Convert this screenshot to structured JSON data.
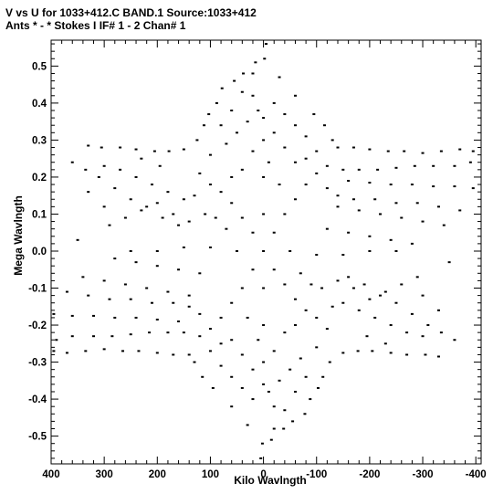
{
  "chart_data": {
    "type": "scatter",
    "title_line1": "V vs U for 1033+412.C BAND.1   Source:1033+412",
    "title_line2": "Ants * - *     Stokes I  IF# 1 - 2  Chan# 1",
    "xlabel": "Kilo Wavlngth",
    "ylabel": "Mega Wavlngth",
    "xlim": [
      400,
      -410
    ],
    "ylim": [
      -0.575,
      0.57
    ],
    "x_reversed": true,
    "grid": false,
    "x_ticks": [
      400,
      300,
      200,
      100,
      0,
      -100,
      -200,
      -300,
      -400
    ],
    "x_tick_labels": [
      "400",
      "300",
      "200",
      "100",
      "0",
      "-100",
      "-200",
      "-300",
      "-400"
    ],
    "y_ticks": [
      0.5,
      0.4,
      0.3,
      0.2,
      0.1,
      0.0,
      -0.1,
      -0.2,
      -0.3,
      -0.4,
      -0.5
    ],
    "y_tick_labels": [
      "0.5",
      "0.4",
      "0.3",
      "0.2",
      "0.1",
      "0.0",
      "-0.1",
      "-0.2",
      "-0.3",
      "-0.4",
      "-0.5"
    ],
    "marker": "dot",
    "point_color": "#000000",
    "points": [
      [
        0,
        0.0
      ],
      [
        -5,
        0.56
      ],
      [
        5,
        -0.56
      ],
      [
        -2,
        0.52
      ],
      [
        2,
        -0.52
      ],
      [
        15,
        0.51
      ],
      [
        -15,
        -0.51
      ],
      [
        20,
        0.48
      ],
      [
        -20,
        -0.48
      ],
      [
        38,
        0.48
      ],
      [
        -38,
        -0.48
      ],
      [
        55,
        0.46
      ],
      [
        -55,
        -0.46
      ],
      [
        78,
        0.44
      ],
      [
        -78,
        -0.44
      ],
      [
        88,
        0.4
      ],
      [
        -88,
        -0.4
      ],
      [
        103,
        0.37
      ],
      [
        -103,
        -0.37
      ],
      [
        112,
        0.34
      ],
      [
        -112,
        -0.34
      ],
      [
        125,
        0.3
      ],
      [
        -125,
        -0.3
      ],
      [
        -30,
        0.47
      ],
      [
        30,
        -0.47
      ],
      [
        -60,
        0.42
      ],
      [
        60,
        -0.42
      ],
      [
        -95,
        0.37
      ],
      [
        95,
        -0.37
      ],
      [
        -115,
        0.34
      ],
      [
        115,
        -0.34
      ],
      [
        -130,
        0.3
      ],
      [
        130,
        -0.3
      ],
      [
        -140,
        0.28
      ],
      [
        140,
        -0.28
      ],
      [
        330,
        0.285
      ],
      [
        -330,
        -0.285
      ],
      [
        305,
        0.28
      ],
      [
        -305,
        -0.28
      ],
      [
        270,
        0.28
      ],
      [
        -270,
        -0.28
      ],
      [
        240,
        0.275
      ],
      [
        -240,
        -0.275
      ],
      [
        205,
        0.27
      ],
      [
        -205,
        -0.27
      ],
      [
        178,
        0.27
      ],
      [
        -178,
        -0.27
      ],
      [
        150,
        0.275
      ],
      [
        -150,
        -0.275
      ],
      [
        -170,
        0.28
      ],
      [
        170,
        -0.28
      ],
      [
        -200,
        0.275
      ],
      [
        200,
        -0.275
      ],
      [
        -235,
        0.27
      ],
      [
        235,
        -0.27
      ],
      [
        -265,
        0.27
      ],
      [
        265,
        -0.27
      ],
      [
        -300,
        0.265
      ],
      [
        300,
        -0.265
      ],
      [
        -335,
        0.27
      ],
      [
        335,
        -0.27
      ],
      [
        -370,
        0.275
      ],
      [
        370,
        -0.275
      ],
      [
        -395,
        0.27
      ],
      [
        395,
        -0.27
      ],
      [
        360,
        0.24
      ],
      [
        -360,
        -0.24
      ],
      [
        335,
        0.22
      ],
      [
        -335,
        -0.22
      ],
      [
        310,
        0.2
      ],
      [
        -310,
        -0.2
      ],
      [
        280,
        0.17
      ],
      [
        -280,
        -0.17
      ],
      [
        250,
        0.14
      ],
      [
        -250,
        -0.14
      ],
      [
        220,
        0.12
      ],
      [
        -220,
        -0.12
      ],
      [
        190,
        0.09
      ],
      [
        -190,
        -0.09
      ],
      [
        160,
        0.07
      ],
      [
        -160,
        -0.07
      ],
      [
        -150,
        0.22
      ],
      [
        150,
        -0.22
      ],
      [
        -180,
        0.22
      ],
      [
        180,
        -0.22
      ],
      [
        -215,
        0.22
      ],
      [
        215,
        -0.22
      ],
      [
        -250,
        0.225
      ],
      [
        250,
        -0.225
      ],
      [
        -285,
        0.23
      ],
      [
        285,
        -0.23
      ],
      [
        -320,
        0.23
      ],
      [
        320,
        -0.23
      ],
      [
        -360,
        0.23
      ],
      [
        360,
        -0.23
      ],
      [
        -390,
        0.24
      ],
      [
        390,
        -0.24
      ],
      [
        -160,
        0.19
      ],
      [
        160,
        -0.19
      ],
      [
        -200,
        0.185
      ],
      [
        200,
        -0.185
      ],
      [
        -240,
        0.18
      ],
      [
        240,
        -0.18
      ],
      [
        -280,
        0.18
      ],
      [
        280,
        -0.18
      ],
      [
        -320,
        0.175
      ],
      [
        320,
        -0.175
      ],
      [
        -360,
        0.175
      ],
      [
        360,
        -0.175
      ],
      [
        -395,
        0.17
      ],
      [
        395,
        -0.17
      ],
      [
        -140,
        0.12
      ],
      [
        140,
        -0.12
      ],
      [
        -180,
        0.11
      ],
      [
        180,
        -0.11
      ],
      [
        -220,
        0.1
      ],
      [
        220,
        -0.1
      ],
      [
        -260,
        0.09
      ],
      [
        260,
        -0.09
      ],
      [
        -300,
        0.08
      ],
      [
        300,
        -0.08
      ],
      [
        -340,
        0.07
      ],
      [
        340,
        -0.07
      ],
      [
        -120,
        0.06
      ],
      [
        120,
        -0.06
      ],
      [
        -160,
        0.05
      ],
      [
        160,
        -0.05
      ],
      [
        -200,
        0.04
      ],
      [
        200,
        -0.04
      ],
      [
        -240,
        0.03
      ],
      [
        240,
        -0.03
      ],
      [
        -280,
        0.02
      ],
      [
        280,
        -0.02
      ],
      [
        270,
        0.22
      ],
      [
        -270,
        -0.22
      ],
      [
        240,
        0.2
      ],
      [
        -240,
        -0.2
      ],
      [
        210,
        0.18
      ],
      [
        -210,
        -0.18
      ],
      [
        180,
        0.16
      ],
      [
        -180,
        -0.16
      ],
      [
        150,
        0.14
      ],
      [
        -150,
        -0.14
      ],
      [
        300,
        0.23
      ],
      [
        -300,
        -0.23
      ],
      [
        230,
        0.25
      ],
      [
        -230,
        -0.25
      ],
      [
        195,
        0.23
      ],
      [
        -195,
        -0.23
      ],
      [
        120,
        0.21
      ],
      [
        -120,
        -0.21
      ],
      [
        100,
        0.18
      ],
      [
        -100,
        -0.18
      ],
      [
        80,
        0.16
      ],
      [
        -80,
        -0.16
      ],
      [
        60,
        0.13
      ],
      [
        -60,
        -0.13
      ],
      [
        40,
        0.09
      ],
      [
        -40,
        -0.09
      ],
      [
        20,
        0.05
      ],
      [
        -20,
        -0.05
      ],
      [
        100,
        0.26
      ],
      [
        -100,
        -0.26
      ],
      [
        70,
        0.29
      ],
      [
        -70,
        -0.29
      ],
      [
        50,
        0.32
      ],
      [
        -50,
        -0.32
      ],
      [
        30,
        0.35
      ],
      [
        -30,
        -0.35
      ],
      [
        10,
        0.38
      ],
      [
        -10,
        -0.38
      ],
      [
        -20,
        0.4
      ],
      [
        20,
        -0.4
      ],
      [
        -40,
        0.37
      ],
      [
        40,
        -0.37
      ],
      [
        -60,
        0.34
      ],
      [
        60,
        -0.34
      ],
      [
        -80,
        0.31
      ],
      [
        80,
        -0.31
      ],
      [
        -100,
        0.27
      ],
      [
        100,
        -0.27
      ],
      [
        -120,
        0.23
      ],
      [
        120,
        -0.23
      ],
      [
        -20,
        0.05
      ],
      [
        20,
        -0.05
      ],
      [
        -40,
        0.1
      ],
      [
        40,
        -0.1
      ],
      [
        -60,
        0.14
      ],
      [
        60,
        -0.14
      ],
      [
        -80,
        0.18
      ],
      [
        80,
        -0.18
      ],
      [
        -100,
        0.21
      ],
      [
        100,
        -0.21
      ],
      [
        0,
        0.3
      ],
      [
        0,
        -0.3
      ],
      [
        0,
        0.2
      ],
      [
        0,
        -0.2
      ],
      [
        0,
        0.1
      ],
      [
        0,
        -0.1
      ],
      [
        50,
        0.0
      ],
      [
        -50,
        0.0
      ],
      [
        100,
        0.01
      ],
      [
        -100,
        -0.01
      ],
      [
        150,
        0.01
      ],
      [
        -150,
        -0.01
      ],
      [
        200,
        0.0
      ],
      [
        -200,
        0.0
      ],
      [
        250,
        0.0
      ],
      [
        -250,
        0.0
      ],
      [
        350,
        0.03
      ],
      [
        -350,
        -0.03
      ],
      [
        300,
        0.12
      ],
      [
        -300,
        -0.12
      ],
      [
        330,
        0.16
      ],
      [
        -330,
        -0.16
      ],
      [
        290,
        0.07
      ],
      [
        -290,
        -0.07
      ],
      [
        260,
        0.09
      ],
      [
        -260,
        -0.09
      ],
      [
        230,
        0.11
      ],
      [
        -230,
        -0.11
      ],
      [
        200,
        0.13
      ],
      [
        -200,
        -0.13
      ],
      [
        170,
        0.1
      ],
      [
        -170,
        -0.1
      ],
      [
        140,
        0.08
      ],
      [
        -140,
        -0.08
      ],
      [
        110,
        0.1
      ],
      [
        -110,
        -0.1
      ],
      [
        130,
        0.15
      ],
      [
        -130,
        -0.15
      ],
      [
        90,
        0.09
      ],
      [
        -90,
        -0.09
      ],
      [
        70,
        0.06
      ],
      [
        -70,
        -0.06
      ],
      [
        -30,
        0.18
      ],
      [
        30,
        -0.18
      ],
      [
        -10,
        0.24
      ],
      [
        10,
        -0.24
      ],
      [
        20,
        0.27
      ],
      [
        -20,
        -0.27
      ],
      [
        40,
        0.22
      ],
      [
        -40,
        -0.22
      ],
      [
        60,
        0.2
      ],
      [
        -60,
        -0.2
      ],
      [
        -60,
        0.24
      ],
      [
        60,
        -0.24
      ],
      [
        -80,
        0.25
      ],
      [
        80,
        -0.25
      ],
      [
        -40,
        0.28
      ],
      [
        40,
        -0.28
      ],
      [
        -20,
        0.32
      ],
      [
        20,
        -0.32
      ],
      [
        0,
        0.36
      ],
      [
        0,
        -0.36
      ],
      [
        20,
        0.42
      ],
      [
        -20,
        -0.42
      ],
      [
        40,
        0.43
      ],
      [
        -40,
        -0.43
      ],
      [
        60,
        0.38
      ],
      [
        -60,
        -0.38
      ],
      [
        80,
        0.34
      ],
      [
        -80,
        -0.34
      ],
      [
        -140,
        0.15
      ],
      [
        140,
        -0.15
      ],
      [
        -120,
        0.17
      ],
      [
        120,
        -0.17
      ],
      [
        -170,
        0.14
      ],
      [
        170,
        -0.14
      ],
      [
        -210,
        0.14
      ],
      [
        210,
        -0.14
      ],
      [
        -250,
        0.13
      ],
      [
        250,
        -0.13
      ],
      [
        -290,
        0.13
      ],
      [
        290,
        -0.13
      ],
      [
        -330,
        0.12
      ],
      [
        330,
        -0.12
      ],
      [
        -370,
        0.11
      ],
      [
        370,
        -0.11
      ]
    ]
  }
}
